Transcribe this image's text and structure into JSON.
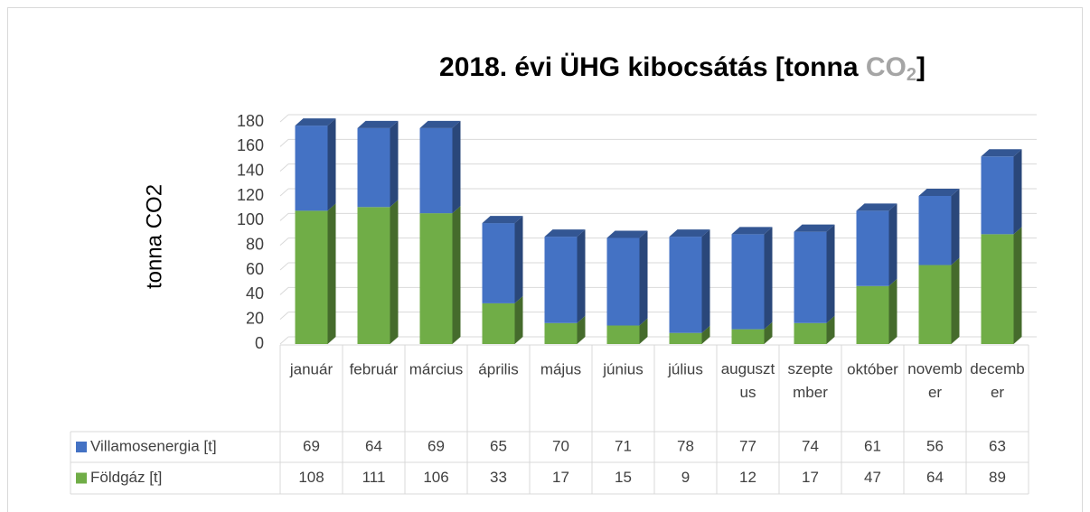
{
  "chart_data": {
    "type": "bar",
    "stacked": true,
    "three_d": true,
    "title": [
      "2018. évi ÜHG kibocsátás [tonna ",
      "CO",
      "2",
      "]"
    ],
    "ylabel": "tonna CO2",
    "categories": [
      "január",
      "február",
      "március",
      "április",
      "május",
      "június",
      "július",
      "augusztus",
      "szeptember",
      "október",
      "november",
      "december"
    ],
    "series": [
      {
        "name": "Villamosenergia [t]",
        "color": "#4472c4",
        "values": [
          69,
          64,
          69,
          65,
          70,
          71,
          78,
          77,
          74,
          61,
          56,
          63
        ]
      },
      {
        "name": "Földgáz [t]",
        "color": "#70ad47",
        "values": [
          108,
          111,
          106,
          33,
          17,
          15,
          9,
          12,
          17,
          47,
          64,
          89
        ]
      }
    ],
    "ylim": [
      0,
      180
    ],
    "yticks": [
      0,
      20,
      40,
      60,
      80,
      100,
      120,
      140,
      160,
      180
    ],
    "grid": true,
    "data_table": true
  }
}
